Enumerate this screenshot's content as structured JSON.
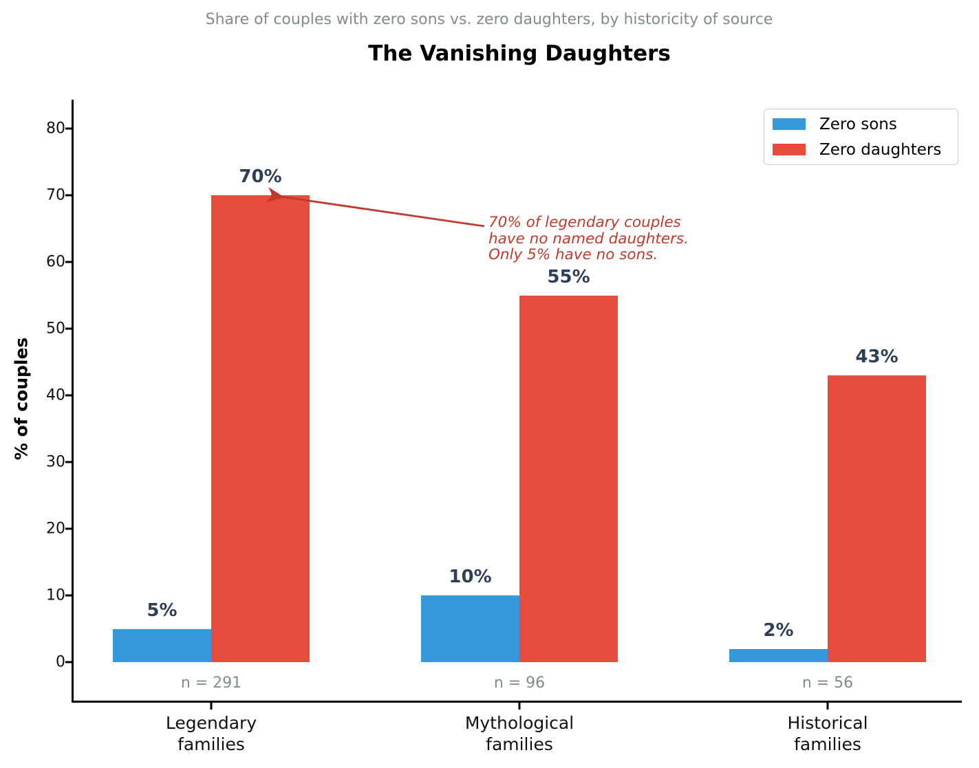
{
  "header": {
    "subtitle": "Share of couples with zero sons vs. zero daughters, by historicity of source",
    "title": "The Vanishing Daughters"
  },
  "chart_data": {
    "type": "bar",
    "title": "The Vanishing Daughters",
    "subtitle": "Share of couples with zero sons vs. zero daughters, by historicity of source",
    "xlabel": "",
    "ylabel": "% of couples",
    "ylim": [
      -6,
      84
    ],
    "yticks": [
      0,
      10,
      20,
      30,
      40,
      50,
      60,
      70,
      80
    ],
    "grid": false,
    "legend_position": "upper right",
    "categories": [
      "Legendary\nfamilies",
      "Mythological\nfamilies",
      "Historical\nfamilies"
    ],
    "series": [
      {
        "name": "Zero sons",
        "color": "#3498db",
        "values": [
          5,
          10,
          2
        ],
        "labels": [
          "5%",
          "10%",
          "2%"
        ]
      },
      {
        "name": "Zero daughters",
        "color": "#e74c3c",
        "values": [
          70,
          55,
          43
        ],
        "labels": [
          "70%",
          "55%",
          "43%"
        ]
      }
    ],
    "sample_sizes": [
      "n = 291",
      "n = 96",
      "n = 56"
    ],
    "annotation": {
      "text": "70% of legendary couples\nhave no named daughters.\nOnly 5% have no sons.",
      "color": "#c0392b"
    }
  },
  "colors": {
    "zero_sons": "#3498db",
    "zero_daughters": "#e74c3c",
    "value_label": "#2e4057",
    "muted_text": "#7f8c8d",
    "annotation": "#c0392b"
  }
}
